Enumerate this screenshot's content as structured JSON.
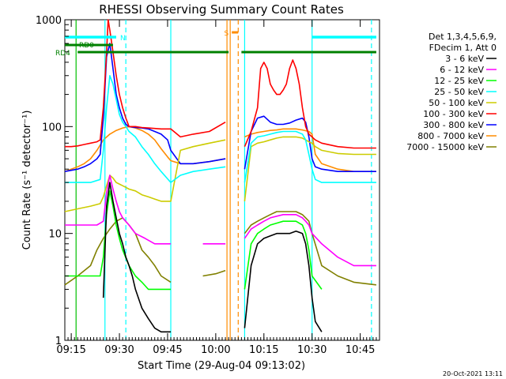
{
  "chart_data": {
    "type": "line",
    "title": "RHESSI Observing Summary Count Rates",
    "xlabel": "Start Time (29-Aug-04 09:13:02)",
    "ylabel": "Count Rate (s⁻¹ detector⁻¹)",
    "yscale": "log",
    "ylim": [
      1,
      1000
    ],
    "xlim_minutes_after_09_13": [
      0,
      98
    ],
    "x_ticks": [
      {
        "label": "09:15",
        "t": 2
      },
      {
        "label": "09:30",
        "t": 17
      },
      {
        "label": "09:45",
        "t": 32
      },
      {
        "label": "10:00",
        "t": 47
      },
      {
        "label": "10:15",
        "t": 62
      },
      {
        "label": "10:30",
        "t": 77
      },
      {
        "label": "10:45",
        "t": 92
      }
    ],
    "y_ticks": [
      {
        "label": "1",
        "v": 1
      },
      {
        "label": "10",
        "v": 10
      },
      {
        "label": "100",
        "v": 100
      },
      {
        "label": "1000",
        "v": 1000
      }
    ],
    "legend": {
      "placement": "right",
      "header": [
        "Det 1,3,4,5,6,9,",
        "FDecim 1, Att 0"
      ]
    },
    "footer_timestamp": "20-Oct-2021 13:11",
    "flags": [
      {
        "label": "N",
        "color": "#00ffff",
        "segments": [
          [
            0,
            16
          ],
          [
            77,
            97
          ]
        ]
      },
      {
        "label": "RD0",
        "color": "#008000",
        "segments": [
          [
            0,
            15
          ]
        ]
      },
      {
        "label": "RD4",
        "color": "#008000",
        "segments": [
          [
            4,
            33
          ],
          [
            33,
            51
          ],
          [
            55,
            77
          ],
          [
            77,
            97
          ]
        ]
      },
      {
        "label": "S",
        "color": "#ff8c00",
        "segments": [
          [
            52,
            54
          ]
        ]
      }
    ],
    "vertical_markers": [
      {
        "t": 3.5,
        "color": "#00c000",
        "style": "solid"
      },
      {
        "t": 12.5,
        "color": "#00ffff",
        "style": "solid"
      },
      {
        "t": 19,
        "color": "#00ffff",
        "style": "dashed"
      },
      {
        "t": 33,
        "color": "#00ffff",
        "style": "solid"
      },
      {
        "t": 50.5,
        "color": "#ff8c00",
        "style": "solid"
      },
      {
        "t": 51.5,
        "color": "#ff8c00",
        "style": "solid"
      },
      {
        "t": 54,
        "color": "#ff8c00",
        "style": "dashed"
      },
      {
        "t": 56,
        "color": "#00ffff",
        "style": "solid"
      },
      {
        "t": 77,
        "color": "#00ffff",
        "style": "solid"
      },
      {
        "t": 95.5,
        "color": "#00ffff",
        "style": "dashed"
      }
    ],
    "series": [
      {
        "name": "3 - 6 keV",
        "color": "#000000",
        "segments": [
          {
            "t": [
              12,
              13,
              14,
              15,
              16,
              17,
              18,
              19,
              20,
              21,
              22,
              24,
              26,
              28,
              30,
              33
            ],
            "v": [
              2.5,
              18,
              30,
              20,
              14,
              10,
              8,
              6,
              5,
              4,
              3,
              2,
              1.6,
              1.3,
              1.2,
              1.2
            ]
          },
          {
            "t": [
              56,
              58,
              60,
              62,
              64,
              66,
              68,
              70,
              72,
              74,
              75,
              76,
              77,
              78,
              80
            ],
            "v": [
              1.3,
              5,
              8,
              9,
              9.5,
              10,
              10,
              10,
              10.5,
              10,
              8,
              5,
              2.5,
              1.5,
              1.2
            ]
          }
        ]
      },
      {
        "name": "6 - 12 keV",
        "color": "#ff00ff",
        "segments": [
          {
            "t": [
              0,
              4,
              8,
              10,
              12,
              13,
              14,
              15,
              16,
              17,
              18,
              20,
              22,
              25,
              28,
              33
            ],
            "v": [
              12,
              12,
              12,
              12,
              13,
              24,
              35,
              26,
              20,
              16,
              14,
              12,
              10,
              9,
              8,
              8
            ]
          },
          {
            "t": [
              43,
              47,
              50
            ],
            "v": [
              8,
              8,
              8
            ]
          },
          {
            "t": [
              56,
              58,
              60,
              62,
              64,
              66,
              68,
              70,
              72,
              74,
              75,
              76,
              77,
              80,
              85,
              90,
              97
            ],
            "v": [
              9,
              11,
              12,
              13,
              14,
              14.5,
              15,
              15,
              15,
              14,
              13,
              12,
              10,
              8,
              6,
              5,
              5
            ]
          }
        ]
      },
      {
        "name": "12 - 25 keV",
        "color": "#00ff00",
        "segments": [
          {
            "t": [
              0,
              4,
              8,
              11,
              12,
              13,
              14,
              15,
              16,
              17,
              18,
              20,
              22,
              24,
              26,
              28,
              33
            ],
            "v": [
              4,
              4,
              4,
              4,
              6,
              15,
              25,
              18,
              12,
              9,
              7,
              5,
              4,
              3.5,
              3,
              3,
              3
            ]
          },
          {
            "t": [
              56,
              58,
              60,
              62,
              64,
              66,
              68,
              70,
              72,
              74,
              75,
              76,
              77,
              80
            ],
            "v": [
              3,
              8,
              10,
              11,
              12,
              12.5,
              13,
              13,
              13,
              12,
              10,
              7,
              4,
              3
            ]
          }
        ]
      },
      {
        "name": "25 - 50 keV",
        "color": "#00ffff",
        "segments": [
          {
            "t": [
              0,
              4,
              8,
              11,
              12,
              13,
              14,
              15,
              16,
              17,
              18,
              19,
              20,
              22,
              24,
              26,
              28,
              30,
              33,
              36,
              40,
              45,
              50
            ],
            "v": [
              30,
              30,
              30,
              32,
              60,
              150,
              300,
              250,
              180,
              130,
              110,
              100,
              90,
              80,
              65,
              55,
              45,
              38,
              30,
              35,
              38,
              40,
              42
            ]
          },
          {
            "t": [
              56,
              58,
              60,
              62,
              64,
              66,
              68,
              70,
              72,
              74,
              75,
              76,
              77,
              78,
              80,
              85,
              90,
              97
            ],
            "v": [
              30,
              70,
              80,
              82,
              85,
              88,
              90,
              90,
              90,
              85,
              75,
              55,
              40,
              32,
              30,
              30,
              30,
              30
            ]
          }
        ]
      },
      {
        "name": "50 - 100 keV",
        "color": "#cccc00",
        "segments": [
          {
            "t": [
              0,
              4,
              8,
              11,
              12,
              13,
              14,
              15,
              16,
              17,
              18,
              19,
              20,
              22,
              24,
              26,
              28,
              30,
              33,
              36,
              40,
              45,
              50
            ],
            "v": [
              16,
              17,
              18,
              19,
              22,
              28,
              35,
              33,
              30,
              29,
              28,
              27,
              26,
              25,
              23,
              22,
              21,
              20,
              20,
              60,
              65,
              70,
              75
            ]
          },
          {
            "t": [
              56,
              58,
              60,
              62,
              64,
              66,
              68,
              70,
              72,
              74,
              75,
              76,
              77,
              78,
              80,
              85,
              90,
              97
            ],
            "v": [
              20,
              65,
              70,
              72,
              75,
              78,
              80,
              80,
              80,
              78,
              75,
              72,
              70,
              65,
              60,
              56,
              55,
              55
            ]
          }
        ]
      },
      {
        "name": "100 - 300 keV",
        "color": "#ff0000",
        "segments": [
          {
            "t": [
              0,
              2,
              4,
              6,
              8,
              10,
              11,
              12,
              13,
              13.5,
              14,
              15,
              16,
              17,
              18,
              19,
              20,
              22,
              24,
              26,
              28,
              30,
              32,
              33,
              36,
              40,
              45,
              50
            ],
            "v": [
              65,
              65,
              66,
              68,
              70,
              72,
              75,
              150,
              500,
              1000,
              800,
              500,
              300,
              200,
              150,
              120,
              100,
              100,
              98,
              97,
              96,
              95,
              95,
              95,
              80,
              85,
              90,
              110
            ]
          },
          {
            "t": [
              56,
              58,
              60,
              61,
              62,
              63,
              64,
              65,
              66,
              67,
              68,
              69,
              70,
              71,
              72,
              73,
              74,
              75,
              76,
              77,
              78,
              80,
              85,
              90,
              97
            ],
            "v": [
              65,
              90,
              150,
              350,
              400,
              350,
              250,
              220,
              200,
              200,
              220,
              250,
              350,
              420,
              350,
              250,
              150,
              100,
              85,
              80,
              75,
              70,
              65,
              63,
              63
            ]
          }
        ]
      },
      {
        "name": "300 - 800 keV",
        "color": "#0000ff",
        "segments": [
          {
            "t": [
              0,
              2,
              4,
              6,
              8,
              10,
              11,
              12,
              13,
              14,
              15,
              16,
              17,
              18,
              19,
              20,
              22,
              24,
              26,
              28,
              30,
              32,
              33,
              36,
              40,
              45,
              50
            ],
            "v": [
              38,
              39,
              40,
              42,
              45,
              50,
              55,
              120,
              450,
              600,
              350,
              200,
              150,
              120,
              105,
              100,
              98,
              97,
              95,
              90,
              85,
              75,
              60,
              45,
              45,
              47,
              50
            ]
          },
          {
            "t": [
              56,
              58,
              60,
              62,
              64,
              66,
              68,
              70,
              72,
              74,
              75,
              76,
              77,
              78,
              80,
              85,
              90,
              97
            ],
            "v": [
              40,
              90,
              120,
              125,
              110,
              105,
              105,
              108,
              115,
              120,
              110,
              80,
              50,
              42,
              40,
              38,
              38,
              38
            ]
          }
        ]
      },
      {
        "name": "800 - 7000 keV",
        "color": "#ff8c00",
        "segments": [
          {
            "t": [
              0,
              2,
              4,
              6,
              8,
              10,
              12,
              14,
              16,
              18,
              20,
              22,
              24,
              26,
              28,
              30,
              32,
              33,
              36,
              40,
              45,
              50
            ],
            "v": [
              38,
              40,
              42,
              45,
              50,
              60,
              75,
              85,
              92,
              97,
              100,
              97,
              92,
              85,
              75,
              62,
              52,
              48,
              45,
              45,
              47,
              50
            ]
          },
          {
            "t": [
              56,
              58,
              60,
              62,
              64,
              66,
              68,
              70,
              72,
              74,
              76,
              77,
              78,
              80,
              85,
              90,
              97
            ],
            "v": [
              80,
              85,
              88,
              90,
              92,
              93,
              95,
              95,
              95,
              93,
              90,
              85,
              55,
              45,
              40,
              38,
              38
            ]
          }
        ]
      },
      {
        "name": "7000 - 15000 keV",
        "color": "#808000",
        "segments": [
          {
            "t": [
              0,
              4,
              8,
              10,
              12,
              14,
              16,
              18,
              20,
              22,
              24,
              26,
              28,
              30,
              33
            ],
            "v": [
              3.3,
              4,
              5,
              7,
              9,
              11,
              13,
              14,
              12,
              10,
              7,
              6,
              5,
              4,
              3.5
            ]
          },
          {
            "t": [
              43,
              47,
              50
            ],
            "v": [
              4,
              4.2,
              4.5
            ]
          },
          {
            "t": [
              56,
              58,
              60,
              62,
              64,
              66,
              68,
              70,
              72,
              74,
              75,
              76,
              77,
              80,
              85,
              90,
              97
            ],
            "v": [
              10,
              12,
              13,
              14,
              15,
              16,
              16,
              16,
              16,
              15,
              14,
              13,
              10,
              5,
              4,
              3.5,
              3.3
            ]
          }
        ]
      }
    ]
  }
}
